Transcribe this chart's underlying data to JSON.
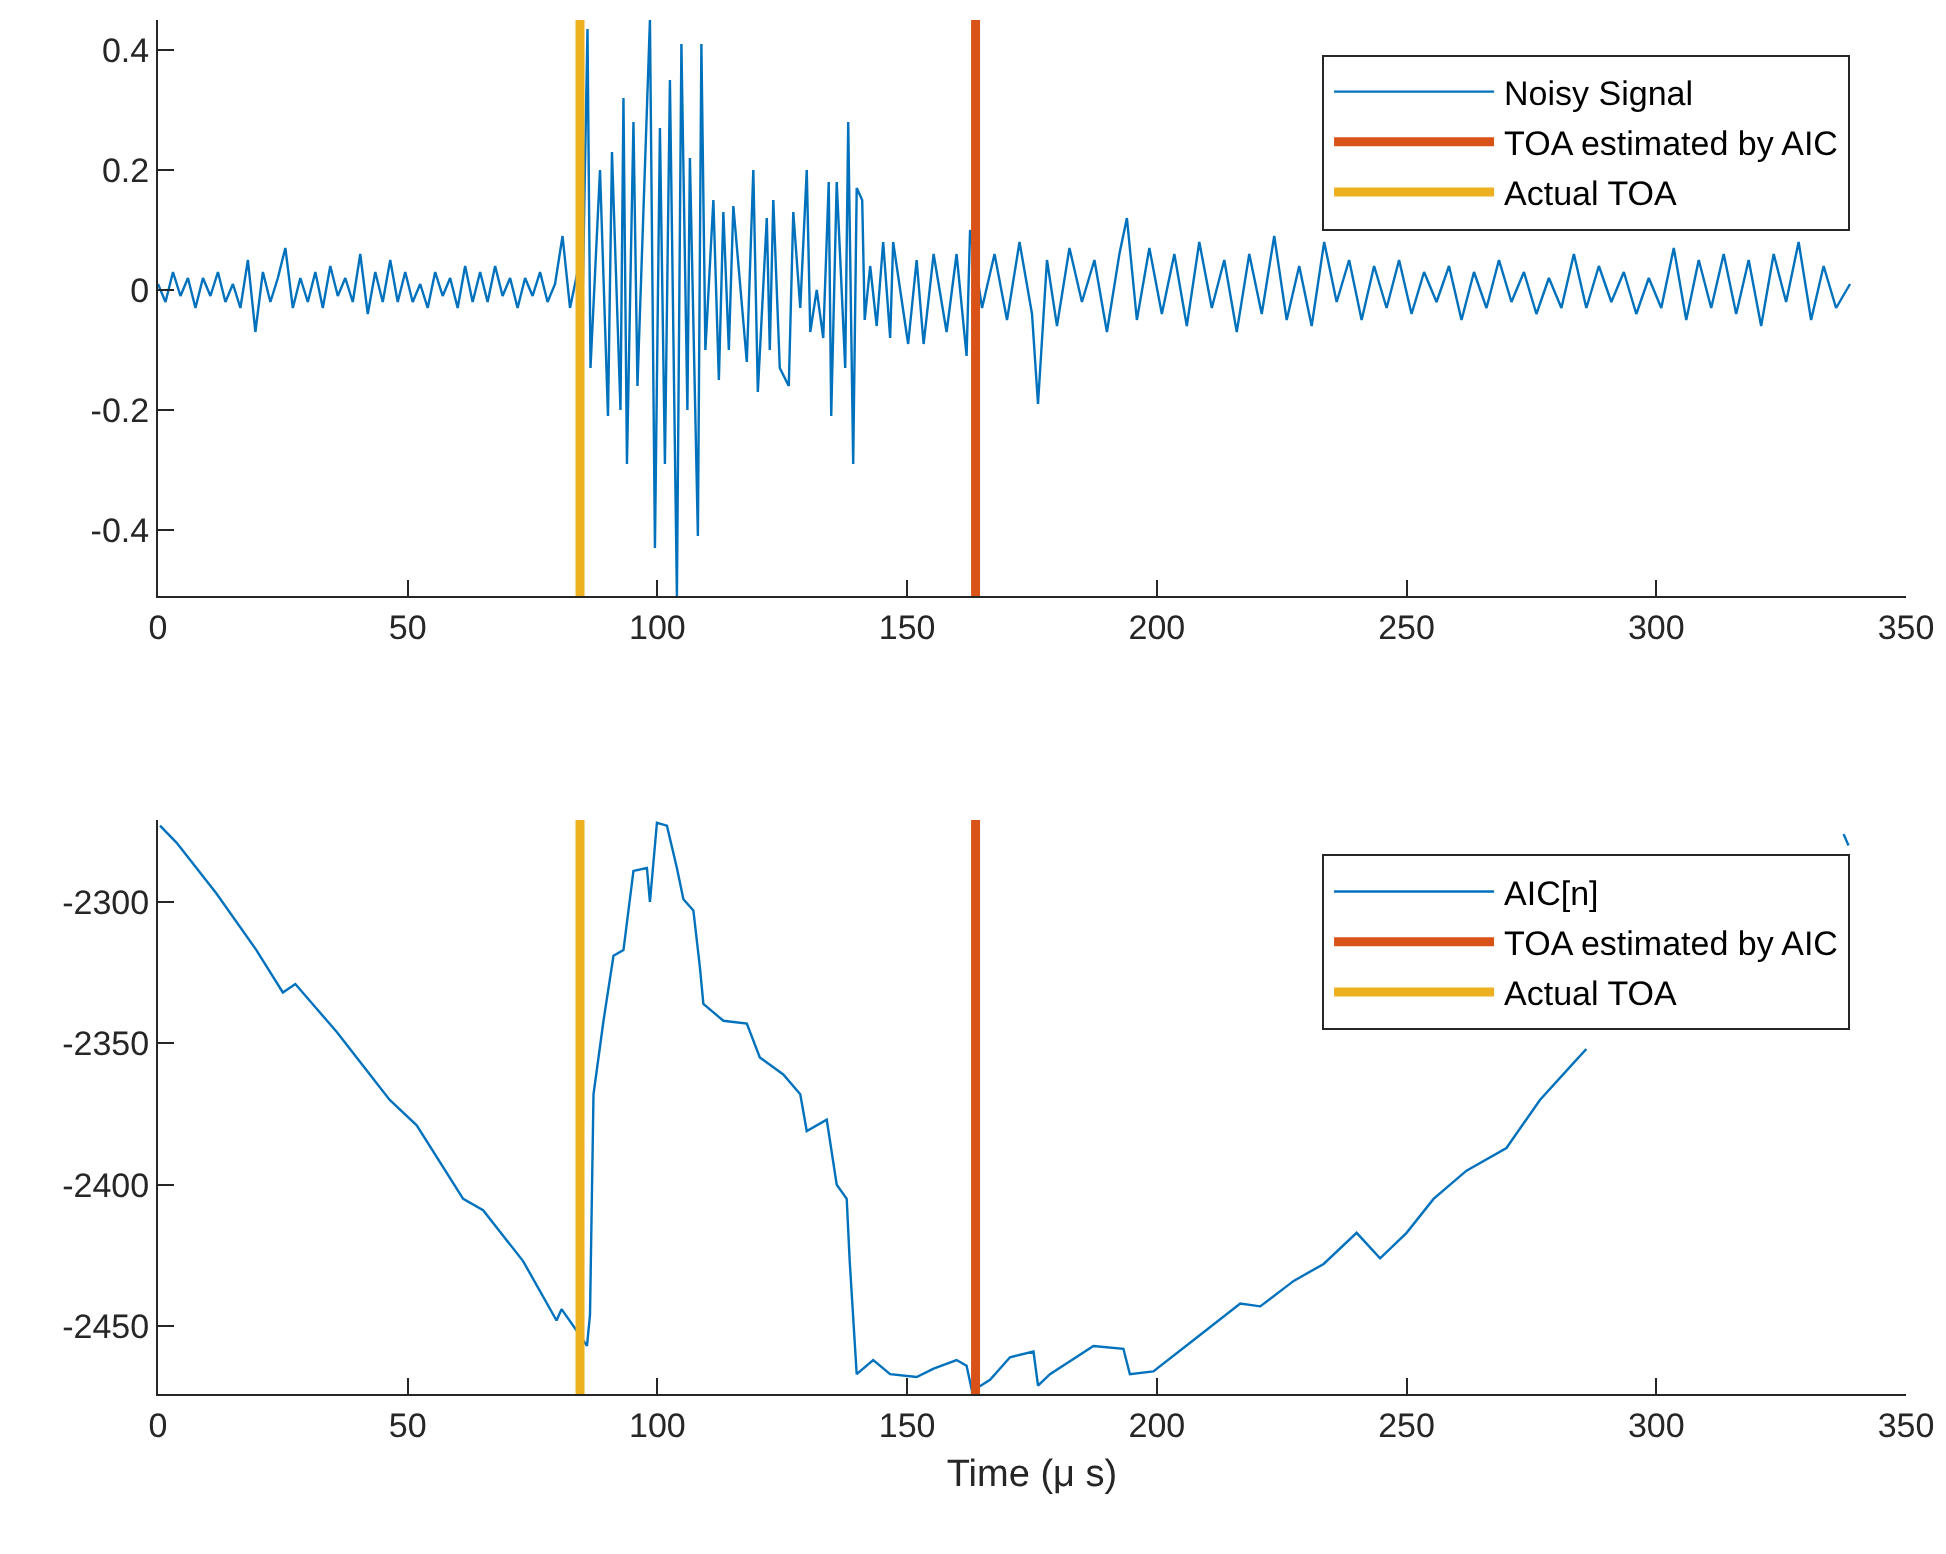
{
  "chart_data": [
    {
      "type": "line",
      "xlim": [
        0,
        350
      ],
      "xticks": [
        0,
        50,
        100,
        150,
        200,
        250,
        300,
        350
      ],
      "ylim": [
        -0.51,
        0.45
      ],
      "yticks": [
        -0.4,
        -0.2,
        0,
        0.2,
        0.4
      ],
      "grid": false,
      "legend": "top right",
      "line_style": "solid",
      "marker": "none",
      "series": [
        {
          "name": "Noisy Signal",
          "color": "#0072bd",
          "x": [
            0,
            1.5,
            3,
            4.5,
            6,
            7.5,
            9,
            10.5,
            12,
            13.5,
            15,
            16.5,
            18,
            19.5,
            21,
            22.5,
            24,
            25.5,
            27,
            28.5,
            30,
            31.5,
            33,
            34.5,
            36,
            37.5,
            39,
            40.5,
            42,
            43.5,
            45,
            46.5,
            48,
            49.5,
            51,
            52.5,
            54,
            55.5,
            57,
            58.5,
            60,
            61.5,
            63,
            64.5,
            66,
            67.5,
            69,
            70.5,
            72,
            73.5,
            75,
            76.5,
            78,
            79.5,
            81,
            82.5,
            84,
            85,
            86,
            86.6,
            88.5,
            90.1,
            90.9,
            92.6,
            93.2,
            93.9,
            95.2,
            96,
            98.5,
            99.5,
            100.5,
            101.5,
            102.5,
            103.9,
            104.8,
            106,
            106.5,
            108.1,
            108.8,
            109.6,
            111.2,
            112.3,
            113.2,
            114.3,
            115.2,
            117.9,
            119.2,
            120.1,
            121.9,
            122.5,
            123.2,
            124.5,
            126.3,
            127.2,
            128.6,
            129.9,
            130.6,
            131.9,
            133.2,
            134.3,
            134.8,
            135.9,
            137.6,
            138.2,
            139.2,
            139.9,
            141,
            141.5,
            142.6,
            143.9,
            145.2,
            146.6,
            147.2,
            150.2,
            151.9,
            153.3,
            155.3,
            157.9,
            159.9,
            161.9,
            162.6,
            165,
            167.5,
            170,
            172.5,
            175,
            176.2,
            178,
            180,
            182.5,
            185,
            187.5,
            190,
            192.5,
            194,
            196,
            198.5,
            201,
            203.5,
            206,
            208.5,
            211,
            213.5,
            216,
            218.5,
            221,
            223.5,
            226,
            228.5,
            231,
            233.5,
            236,
            238.5,
            241,
            243.5,
            246,
            248.5,
            251,
            253.5,
            256,
            258.5,
            261,
            263.5,
            266,
            268.5,
            271,
            273.5,
            276,
            278.5,
            281,
            283.5,
            286,
            288.5,
            291,
            293.5,
            296,
            298.5,
            301,
            303.5,
            306,
            308.5,
            311,
            313.5,
            316,
            318.5,
            321,
            323.5,
            326,
            328.5,
            331,
            333.5,
            336,
            338.8
          ],
          "values": [
            0.01,
            -0.02,
            0.03,
            -0.01,
            0.02,
            -0.03,
            0.02,
            -0.01,
            0.03,
            -0.02,
            0.01,
            -0.03,
            0.05,
            -0.07,
            0.03,
            -0.02,
            0.02,
            0.07,
            -0.03,
            0.02,
            -0.02,
            0.03,
            -0.03,
            0.04,
            -0.01,
            0.02,
            -0.02,
            0.06,
            -0.04,
            0.03,
            -0.02,
            0.05,
            -0.02,
            0.03,
            -0.02,
            0.01,
            -0.03,
            0.03,
            -0.01,
            0.02,
            -0.03,
            0.04,
            -0.02,
            0.03,
            -0.02,
            0.04,
            -0.01,
            0.02,
            -0.03,
            0.02,
            -0.01,
            0.03,
            -0.02,
            0.01,
            0.09,
            -0.03,
            0.03,
            -0.02,
            0.435,
            -0.13,
            0.2,
            -0.21,
            0.23,
            -0.2,
            0.32,
            -0.29,
            0.28,
            -0.16,
            0.45,
            -0.43,
            0.27,
            -0.29,
            0.35,
            -0.51,
            0.41,
            -0.2,
            0.22,
            -0.41,
            0.41,
            -0.1,
            0.15,
            -0.15,
            0.13,
            -0.1,
            0.14,
            -0.12,
            0.2,
            -0.17,
            0.12,
            -0.1,
            0.15,
            -0.13,
            -0.16,
            0.13,
            -0.03,
            0.2,
            -0.07,
            0,
            -0.08,
            0.18,
            -0.21,
            0.18,
            -0.13,
            0.28,
            -0.29,
            0.17,
            0.15,
            -0.05,
            0.04,
            -0.06,
            0.08,
            -0.08,
            0.08,
            -0.09,
            0.05,
            -0.09,
            0.06,
            -0.07,
            0.06,
            -0.11,
            0.1,
            -0.03,
            0.06,
            -0.05,
            0.08,
            -0.04,
            -0.19,
            0.05,
            -0.06,
            0.07,
            -0.02,
            0.05,
            -0.07,
            0.06,
            0.12,
            -0.05,
            0.07,
            -0.04,
            0.06,
            -0.06,
            0.08,
            -0.03,
            0.05,
            -0.07,
            0.06,
            -0.04,
            0.09,
            -0.05,
            0.04,
            -0.06,
            0.08,
            -0.02,
            0.05,
            -0.05,
            0.04,
            -0.03,
            0.05,
            -0.04,
            0.03,
            -0.02,
            0.04,
            -0.05,
            0.03,
            -0.03,
            0.05,
            -0.02,
            0.03,
            -0.04,
            0.02,
            -0.03,
            0.06,
            -0.03,
            0.04,
            -0.02,
            0.03,
            -0.04,
            0.02,
            -0.03,
            0.07,
            -0.05,
            0.05,
            -0.03,
            0.06,
            -0.04,
            0.05,
            -0.06,
            0.06,
            -0.02,
            0.08,
            -0.05,
            0.04,
            -0.03,
            0.01
          ]
        },
        {
          "name": "TOA estimated by AIC",
          "color": "#d95319",
          "x": [
            163.7,
            163.7
          ],
          "values": [
            -0.51,
            0.45
          ]
        },
        {
          "name": "Actual TOA",
          "color": "#edb120",
          "x": [
            84.5,
            84.5
          ],
          "values": [
            -0.51,
            0.45
          ]
        }
      ]
    },
    {
      "type": "line",
      "xlabel": "Time (μ s)",
      "xlim": [
        0,
        350
      ],
      "xticks": [
        0,
        50,
        100,
        150,
        200,
        250,
        300,
        350
      ],
      "ylim": [
        -2474,
        -2271
      ],
      "yticks": [
        -2450,
        -2400,
        -2350,
        -2300
      ],
      "grid": false,
      "legend": "top right",
      "line_style": "solid",
      "marker": "none",
      "series": [
        {
          "name": "AIC[n]",
          "color": "#0072bd",
          "x": [
            0.4,
            3.7,
            11.7,
            19.7,
            25,
            27.5,
            35.8,
            41.1,
            46.4,
            51.8,
            61.1,
            65.1,
            73.1,
            79.8,
            80.8,
            83.6,
            85.9,
            86.5,
            87.2,
            89.2,
            91.2,
            93.2,
            95.2,
            97.9,
            98.5,
            99.9,
            101.9,
            103.9,
            105.2,
            107.2,
            108.5,
            109.2,
            113.2,
            117.9,
            120.5,
            125.2,
            128.6,
            129.9,
            133.9,
            135.9,
            137.9,
            138.5,
            139.9,
            143.2,
            146.6,
            151.9,
            155.3,
            159.9,
            161.9,
            163,
            166.6,
            170.6,
            175.3,
            176.2,
            178.6,
            187.3,
            193.3,
            194.6,
            199.3,
            207.3,
            216.7,
            220.7,
            227.4,
            233.4,
            240,
            244.7,
            250,
            255.4,
            262,
            270,
            276.7,
            283.4,
            286,
            334.1,
            337.5,
            338.5
          ],
          "values": [
            -2273,
            -2279,
            -2297,
            -2317,
            -2332,
            -2329,
            -2346,
            -2358,
            -2370,
            -2379,
            -2405,
            -2409,
            -2427,
            -2448,
            -2444,
            -2451,
            -2457,
            -2446,
            -2368,
            -2342,
            -2319,
            -2317,
            -2289,
            -2288,
            -2300,
            -2272,
            -2273,
            -2288,
            -2299,
            -2303,
            -2323,
            -2336,
            -2342,
            -2343,
            -2355,
            -2361,
            -2368,
            -2381,
            -2377,
            -2400,
            -2405,
            -2427,
            -2467,
            -2462,
            -2467,
            -2468,
            -2465,
            -2462,
            -2464,
            -2473,
            -2469,
            -2461,
            -2459,
            -2471,
            -2467,
            -2457,
            -2458,
            -2467,
            -2466,
            -2455,
            -2442,
            -2443,
            -2434,
            -2428,
            -2417,
            -2426,
            -2417,
            -2405,
            -2395,
            -2387,
            -2370,
            -2357,
            -2352,
            null,
            -2276,
            -2280
          ]
        },
        {
          "name": "TOA estimated by AIC",
          "color": "#d95319",
          "x": [
            163.7,
            163.7
          ],
          "values": [
            -2474,
            -2271
          ]
        },
        {
          "name": "Actual TOA",
          "color": "#edb120",
          "x": [
            84.5,
            84.5
          ],
          "values": [
            -2474,
            -2271
          ]
        }
      ]
    }
  ]
}
